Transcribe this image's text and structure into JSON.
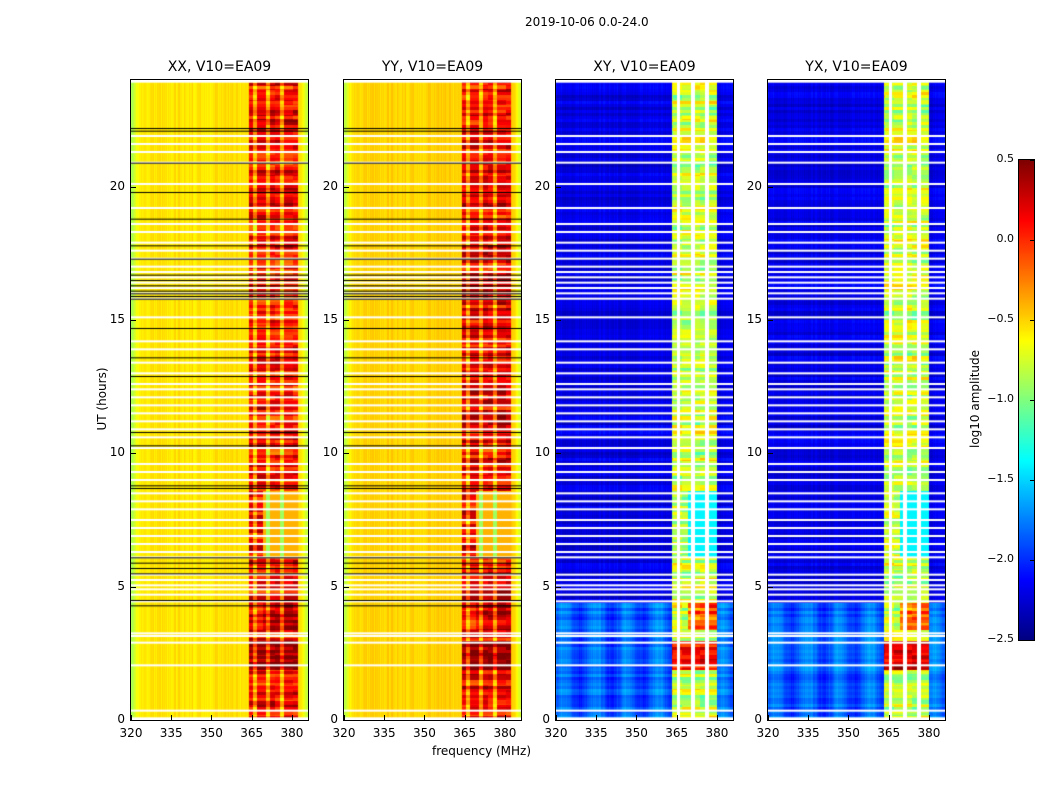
{
  "chart_data": {
    "type": "heatmap",
    "suptitle": "2019-10-06 0.0-24.0",
    "xlabel": "frequency (MHz)",
    "ylabel": "UT (hours)",
    "xlim": [
      320,
      386
    ],
    "ylim": [
      0,
      24
    ],
    "xticks": [
      "320",
      "335",
      "350",
      "365",
      "380"
    ],
    "yticks": [
      "0",
      "5",
      "10",
      "15",
      "20"
    ],
    "panels": [
      {
        "title": "XX, V10=EA09",
        "kind": "parallel",
        "background_log10": -0.55,
        "rfi_band_mhz": [
          364,
          382
        ],
        "rfi_log10": 0.1
      },
      {
        "title": "YY, V10=EA09",
        "kind": "parallel",
        "background_log10": -0.5,
        "rfi_band_mhz": [
          364,
          382
        ],
        "rfi_log10": 0.15
      },
      {
        "title": "XY, V10=EA09",
        "kind": "cross",
        "background_log10": -2.2,
        "rfi_band_mhz": [
          363,
          380
        ],
        "rfi_log10": -0.8
      },
      {
        "title": "YX, V10=EA09",
        "kind": "cross",
        "background_log10": -2.2,
        "rfi_band_mhz": [
          363,
          380
        ],
        "rfi_log10": -0.8
      }
    ],
    "flagged_hours": [
      0.35,
      2.05,
      2.9,
      3.15,
      3.25,
      4.45,
      4.7,
      4.9,
      5.05,
      5.25,
      5.45,
      6.1,
      6.3,
      6.6,
      6.9,
      7.2,
      7.5,
      7.9,
      8.2,
      8.5,
      9.0,
      9.3,
      9.6,
      10.2,
      10.6,
      10.9,
      11.2,
      11.5,
      11.8,
      12.1,
      12.4,
      12.6,
      13.0,
      13.4,
      13.9,
      14.2,
      15.1,
      15.8,
      16.0,
      16.2,
      16.4,
      16.6,
      16.8,
      17.0,
      17.3,
      17.6,
      17.9,
      18.3,
      18.6,
      19.2,
      20.1,
      20.9,
      21.3,
      21.6,
      21.9
    ],
    "black_boundary_hours": [
      4.3,
      4.5,
      5.5,
      5.7,
      5.9,
      6.1,
      8.7,
      8.8,
      10.3,
      10.8,
      12.9,
      13.6,
      14.7,
      15.8,
      15.9,
      16.0,
      16.1,
      16.3,
      16.5,
      16.7,
      17.3,
      17.8,
      18.8,
      19.8,
      20.9,
      22.1,
      22.2
    ],
    "colorbar": {
      "label": "log10 amplitude",
      "range": [
        -2.5,
        0.5
      ],
      "ticks": [
        "0.5",
        "0.0",
        "−0.5",
        "−1.0",
        "−1.5",
        "−2.0",
        "−2.5"
      ],
      "colormap": "jet"
    }
  }
}
